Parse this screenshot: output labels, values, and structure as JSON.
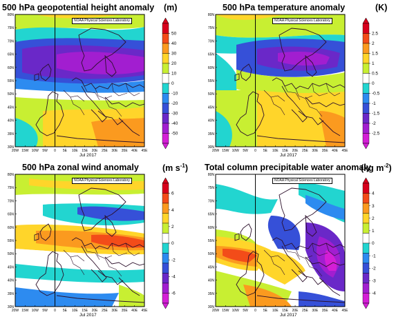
{
  "panels": [
    {
      "id": "p1",
      "title": "500 hPa geopotential height anomaly",
      "unit": "(m)",
      "credit": "NOAA Physical Sciences Laboratory",
      "date": "Jul 2017",
      "lat_labels": [
        "80N",
        "75N",
        "70N",
        "65N",
        "60N",
        "55N",
        "50N",
        "45N",
        "40N",
        "35N",
        "30N"
      ],
      "lon_labels": [
        "20W",
        "15W",
        "10W",
        "5W",
        "0",
        "5E",
        "10E",
        "15E",
        "20E",
        "25E",
        "30E",
        "35E",
        "40E",
        "45E"
      ],
      "colorbar": {
        "ticks": [
          "50",
          "40",
          "30",
          "20",
          "10",
          "0",
          "-10",
          "-20",
          "-30",
          "-40",
          "-50"
        ],
        "colors": [
          "#d8001c",
          "#f34c19",
          "#fb9a1f",
          "#ffd52a",
          "#c8ef32",
          "#ffffff",
          "#22d5d0",
          "#2d8bf0",
          "#3650d8",
          "#6a28c8",
          "#a21ed0",
          "#d41fd6"
        ]
      }
    },
    {
      "id": "p2",
      "title": "500 hPa temperature anomaly",
      "unit": "(K)",
      "credit": "NOAA Physical Sciences Laboratory",
      "date": "Jul 2017",
      "lat_labels": [
        "80N",
        "75N",
        "70N",
        "65N",
        "60N",
        "55N",
        "50N",
        "45N",
        "40N",
        "35N",
        "30N"
      ],
      "lon_labels": [
        "20W",
        "15W",
        "10W",
        "5W",
        "0",
        "5E",
        "10E",
        "15E",
        "20E",
        "25E",
        "30E",
        "35E",
        "40E",
        "45E"
      ],
      "colorbar": {
        "ticks": [
          "2.5",
          "2",
          "1.5",
          "1",
          "0.5",
          "0",
          "-0.5",
          "-1",
          "-1.5",
          "-2",
          "-2.5"
        ],
        "colors": [
          "#d8001c",
          "#f34c19",
          "#fb9a1f",
          "#ffd52a",
          "#c8ef32",
          "#ffffff",
          "#22d5d0",
          "#2d8bf0",
          "#3650d8",
          "#6a28c8",
          "#a21ed0",
          "#d41fd6"
        ]
      }
    },
    {
      "id": "p3",
      "title": "500 hPa zonal wind anomaly",
      "unit": "(m s",
      "unit_sup": "-1",
      "unit_end": ")",
      "credit": "NOAA Physical Sciences Laboratory",
      "date": "Jul 2017",
      "lat_labels": [
        "80N",
        "75N",
        "70N",
        "65N",
        "60N",
        "55N",
        "50N",
        "45N",
        "40N",
        "35N",
        "30N"
      ],
      "lon_labels": [
        "20W",
        "15W",
        "10W",
        "5W",
        "0",
        "5E",
        "10E",
        "15E",
        "20E",
        "25E",
        "30E",
        "35E",
        "40E",
        "45E"
      ],
      "colorbar": {
        "ticks": [
          "6",
          "4",
          "2",
          "0",
          "-2",
          "-4",
          "-6"
        ],
        "colors": [
          "#d8001c",
          "#f34c19",
          "#fb9a1f",
          "#ffd52a",
          "#c8ef32",
          "#ffffff",
          "#22d5d0",
          "#2d8bf0",
          "#3650d8",
          "#6a28c8",
          "#a21ed0",
          "#d41fd6"
        ]
      }
    },
    {
      "id": "p4",
      "title": "Total column precipitable water anomaly",
      "unit": "(kg m",
      "unit_sup": "-2",
      "unit_end": ")",
      "credit": "NOAA Physical Sciences Laboratory",
      "date": "Jul 2017",
      "lat_labels": [
        "80N",
        "75N",
        "70N",
        "65N",
        "60N",
        "55N",
        "50N",
        "45N",
        "40N",
        "35N",
        "30N"
      ],
      "lon_labels": [
        "20W",
        "15W",
        "10W",
        "5W",
        "0",
        "5E",
        "10E",
        "15E",
        "20E",
        "25E",
        "30E",
        "35E",
        "40E",
        "45E"
      ],
      "colorbar": {
        "ticks": [
          "4",
          "3",
          "2",
          "1",
          "0",
          "-1",
          "-2",
          "-3",
          "-4"
        ],
        "colors": [
          "#d8001c",
          "#f34c19",
          "#fb9a1f",
          "#ffd52a",
          "#c8ef32",
          "#ffffff",
          "#22d5d0",
          "#2d8bf0",
          "#3650d8",
          "#6a28c8",
          "#a21ed0",
          "#d41fd6"
        ]
      }
    }
  ]
}
